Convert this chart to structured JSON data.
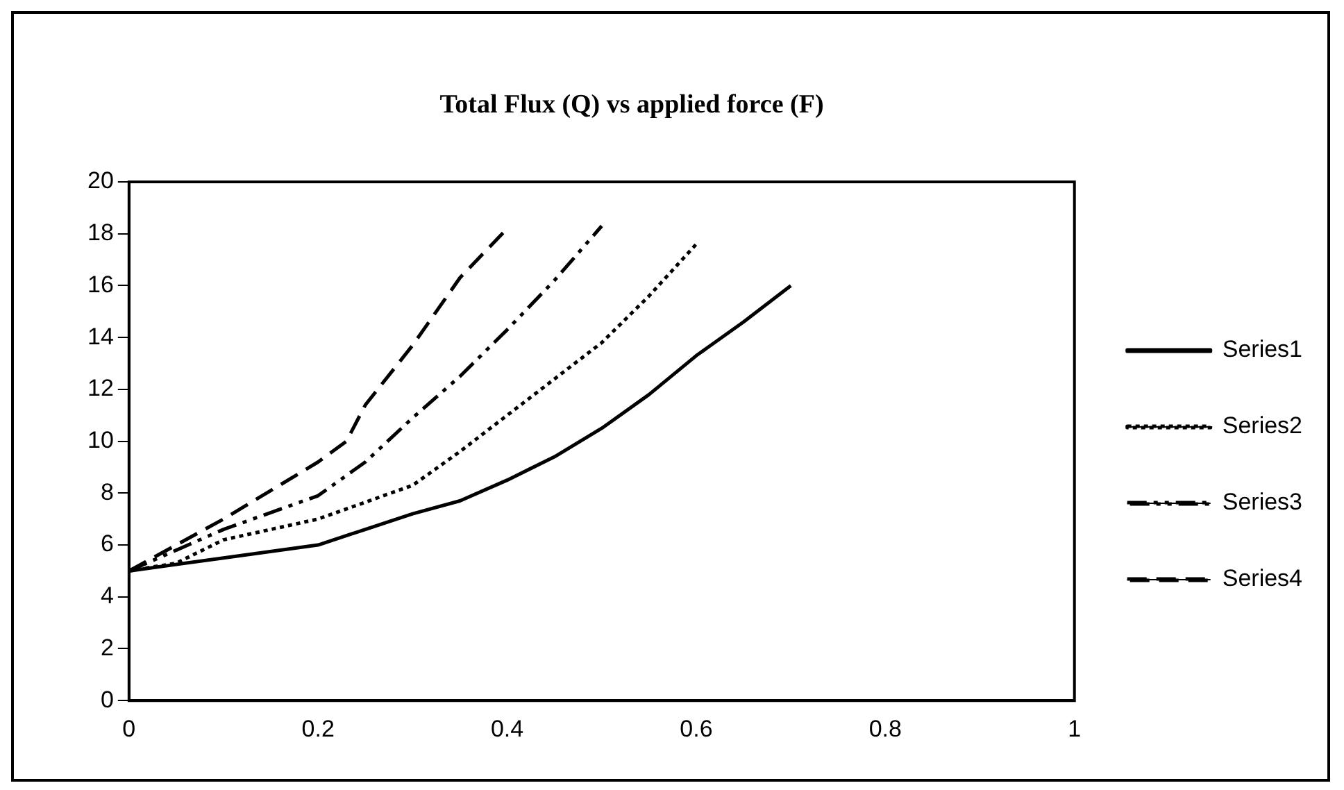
{
  "chart_data": {
    "type": "line",
    "title": "Total Flux (Q) vs applied force (F)",
    "xlim": [
      0,
      1
    ],
    "xticks": [
      0,
      0.2,
      0.4,
      0.6,
      0.8,
      1
    ],
    "ylim": [
      0,
      20
    ],
    "yticks": [
      0,
      2,
      4,
      6,
      8,
      10,
      12,
      14,
      16,
      18,
      20
    ],
    "grid": false,
    "legend": "right",
    "marker": "none",
    "series": [
      {
        "name": "Series1",
        "color": "#000000",
        "line_style": "solid",
        "x": [
          0,
          0.1,
          0.2,
          0.3,
          0.35,
          0.4,
          0.45,
          0.5,
          0.55,
          0.6,
          0.65,
          0.7
        ],
        "values": [
          5,
          5.5,
          6,
          7.2,
          7.7,
          8.5,
          9.4,
          10.5,
          11.8,
          13.3,
          14.6,
          16
        ]
      },
      {
        "name": "Series2",
        "color": "#000000",
        "line_style": "dotted",
        "x": [
          0,
          0.05,
          0.1,
          0.2,
          0.3,
          0.35,
          0.4,
          0.45,
          0.5,
          0.55,
          0.6
        ],
        "values": [
          5,
          5.3,
          6.2,
          7,
          8.3,
          9.6,
          11,
          12.4,
          13.8,
          15.6,
          17.6
        ]
      },
      {
        "name": "Series3",
        "color": "#000000",
        "line_style": "dashdot",
        "x": [
          0,
          0.1,
          0.2,
          0.25,
          0.3,
          0.35,
          0.4,
          0.45,
          0.5
        ],
        "values": [
          5,
          6.6,
          7.9,
          9.2,
          10.9,
          12.5,
          14.3,
          16.2,
          18.3
        ]
      },
      {
        "name": "Series4",
        "color": "#000000",
        "line_style": "dashed",
        "x": [
          0,
          0.1,
          0.15,
          0.2,
          0.23,
          0.25,
          0.3,
          0.35,
          0.4
        ],
        "values": [
          5,
          7,
          8.1,
          9.2,
          10,
          11.4,
          13.7,
          16.3,
          18.2
        ]
      }
    ]
  }
}
